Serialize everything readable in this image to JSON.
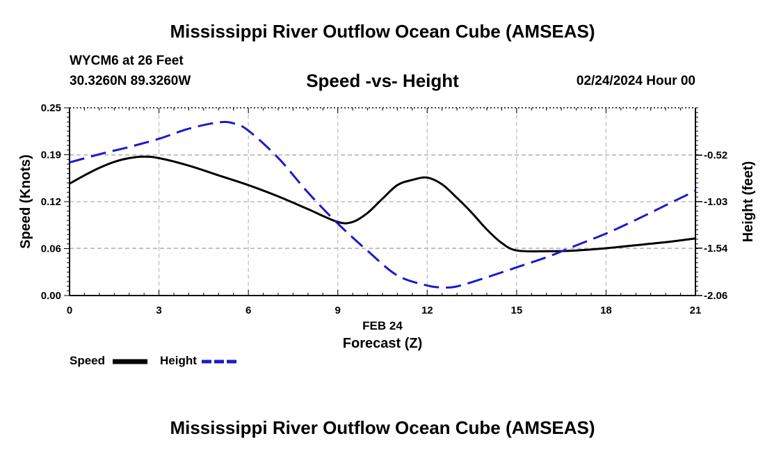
{
  "header": {
    "title": "Mississippi River Outflow Ocean Cube (AMSEAS)",
    "station": "WYCM6 at 26 Feet",
    "coords": "30.3260N  89.3260W",
    "subtitle": "Speed -vs- Height",
    "datetime": "02/24/2024 Hour 00"
  },
  "footer": {
    "title": "Mississippi River Outflow Ocean Cube (AMSEAS)"
  },
  "legend": {
    "speed_label": "Speed",
    "height_label": "Height"
  },
  "colors": {
    "speed": "#000000",
    "height": "#1a1acc",
    "grid": "#bbbbbb"
  },
  "chart_data": {
    "type": "line",
    "title": "Speed -vs- Height",
    "xlabel": "Forecast (Z)",
    "xlabel_date": "FEB 24",
    "ylabel": "Speed (Knots)",
    "y2label": "Height (feet)",
    "xlim": [
      0,
      21
    ],
    "ylim": [
      0,
      0.25
    ],
    "y2lim": [
      -2.06,
      -0.0
    ],
    "x_ticks": [
      0,
      3,
      6,
      9,
      12,
      15,
      18,
      21
    ],
    "y_ticks": [
      "0.00",
      "0.06",
      "0.12",
      "0.19",
      "0.25"
    ],
    "y_tick_values": [
      0,
      0.0625,
      0.125,
      0.1875,
      0.25
    ],
    "y2_ticks": [
      "-0.52",
      "-1.03",
      "-1.54",
      "-2.06"
    ],
    "y2_tick_values": [
      -0.52,
      -1.03,
      -1.54,
      -2.06
    ],
    "series": [
      {
        "name": "Speed",
        "axis": "left",
        "style": "solid",
        "x": [
          0,
          0.5,
          1,
          1.5,
          2,
          2.5,
          3,
          4,
          5,
          6,
          7,
          8,
          9,
          9.5,
          10,
          10.5,
          11,
          11.5,
          12,
          12.5,
          13,
          13.5,
          14,
          14.5,
          15,
          16,
          17,
          18,
          19,
          20,
          21
        ],
        "values": [
          0.149,
          0.16,
          0.17,
          0.178,
          0.183,
          0.185,
          0.183,
          0.173,
          0.16,
          0.147,
          0.132,
          0.115,
          0.098,
          0.098,
          0.11,
          0.129,
          0.147,
          0.154,
          0.157,
          0.148,
          0.13,
          0.11,
          0.088,
          0.07,
          0.06,
          0.059,
          0.06,
          0.063,
          0.067,
          0.071,
          0.076
        ]
      },
      {
        "name": "Height",
        "axis": "right",
        "style": "dashed",
        "x": [
          0,
          1,
          2,
          3,
          4,
          5,
          5.5,
          6,
          7,
          8,
          9,
          10,
          11,
          12,
          12.5,
          13,
          14,
          15,
          16,
          17,
          18,
          19,
          20,
          21
        ],
        "values": [
          -0.6,
          -0.51,
          -0.43,
          -0.34,
          -0.23,
          -0.16,
          -0.17,
          -0.25,
          -0.55,
          -0.93,
          -1.27,
          -1.57,
          -1.84,
          -1.95,
          -1.97,
          -1.96,
          -1.86,
          -1.75,
          -1.64,
          -1.51,
          -1.38,
          -1.23,
          -1.07,
          -0.91
        ]
      }
    ]
  }
}
